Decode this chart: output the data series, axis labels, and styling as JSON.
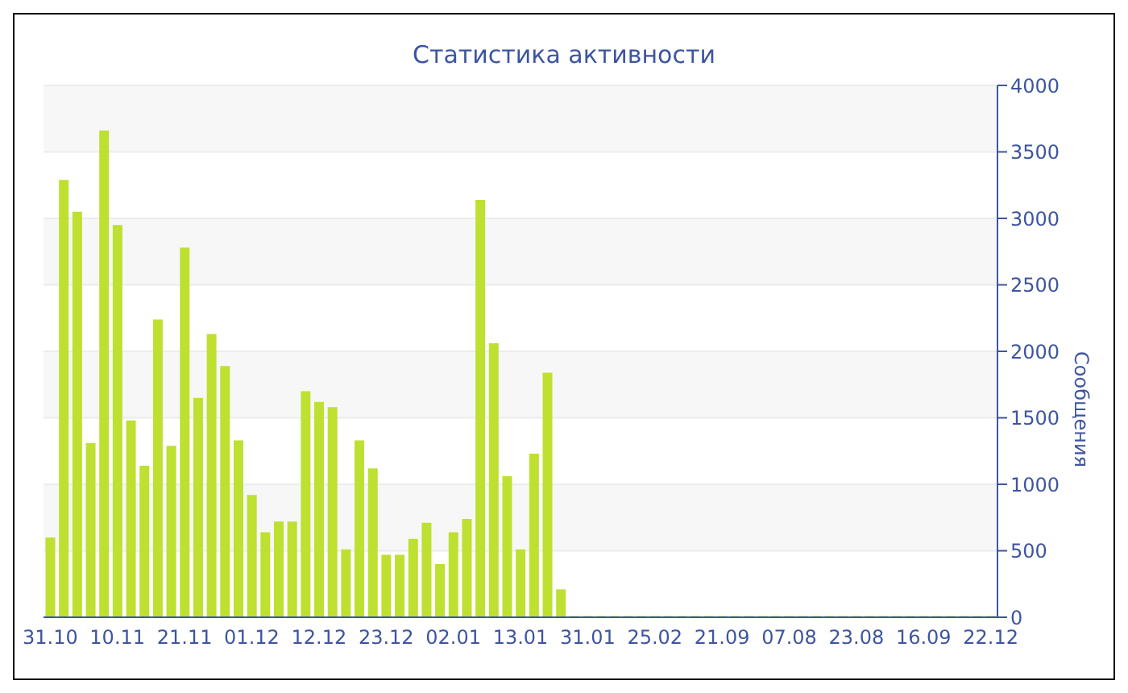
{
  "chart_data": {
    "type": "bar",
    "title": "Статистика активности",
    "ylabel": "Сообщения",
    "categories": [
      "31.10",
      null,
      null,
      null,
      null,
      "10.11",
      null,
      null,
      null,
      null,
      "21.11",
      null,
      null,
      null,
      null,
      "01.12",
      null,
      null,
      null,
      null,
      "12.12",
      null,
      null,
      null,
      null,
      "23.12",
      null,
      null,
      null,
      null,
      "02.01",
      null,
      null,
      null,
      null,
      "13.01",
      null,
      null,
      null,
      null,
      "31.01",
      null,
      null,
      null,
      null,
      "25.02",
      null,
      null,
      null,
      null,
      "21.09",
      null,
      null,
      null,
      null,
      "07.08",
      null,
      null,
      null,
      null,
      "23.08",
      null,
      null,
      null,
      null,
      "16.09",
      null,
      null,
      null,
      null,
      "22.12"
    ],
    "values": [
      600,
      3290,
      3050,
      1310,
      3660,
      2950,
      1480,
      1140,
      2240,
      1290,
      2780,
      1650,
      2130,
      1890,
      1330,
      920,
      640,
      720,
      720,
      1700,
      1620,
      1580,
      510,
      1330,
      1120,
      470,
      470,
      590,
      710,
      400,
      640,
      740,
      3140,
      2060,
      1060,
      510,
      1230,
      1840,
      210,
      10,
      10,
      10,
      10,
      10,
      10,
      10,
      10,
      10,
      10,
      10,
      10,
      10,
      10,
      10,
      10,
      10,
      10,
      10,
      10,
      10,
      10,
      10,
      10,
      10,
      10,
      10,
      10,
      10,
      10,
      10,
      10
    ],
    "color": "#bde031",
    "ylim": [
      0,
      4000
    ],
    "yticks": [
      0,
      500,
      1000,
      1500,
      2000,
      2500,
      3000,
      3500,
      4000
    ],
    "grid": "y"
  }
}
